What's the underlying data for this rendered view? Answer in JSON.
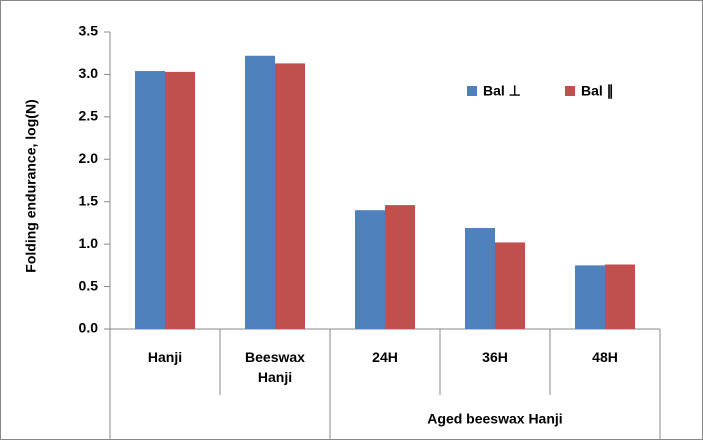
{
  "chart_data": {
    "type": "bar",
    "y_label": "Folding endurance, log(N)",
    "categories": [
      "Hanji",
      "Beeswax Hanji",
      "24H",
      "36H",
      "48H"
    ],
    "group_label": "Aged beeswax Hanji",
    "series": [
      {
        "name": "Bal ⊥",
        "color": "#4f81bd",
        "values": [
          3.04,
          3.22,
          1.4,
          1.19,
          0.75
        ]
      },
      {
        "name": "Bal ∥",
        "color": "#c0504d",
        "values": [
          3.03,
          3.13,
          1.46,
          1.02,
          0.76
        ]
      }
    ],
    "ylim": [
      0,
      3.5
    ],
    "yticks": [
      {
        "value": 0,
        "label": "0.0"
      },
      0.5,
      {
        "value": 1,
        "label": "1.0"
      },
      1.5,
      {
        "value": 2,
        "label": "2.0"
      },
      2.5,
      {
        "value": 3,
        "label": "3.0"
      },
      3.5
    ],
    "legend": "upper right"
  }
}
